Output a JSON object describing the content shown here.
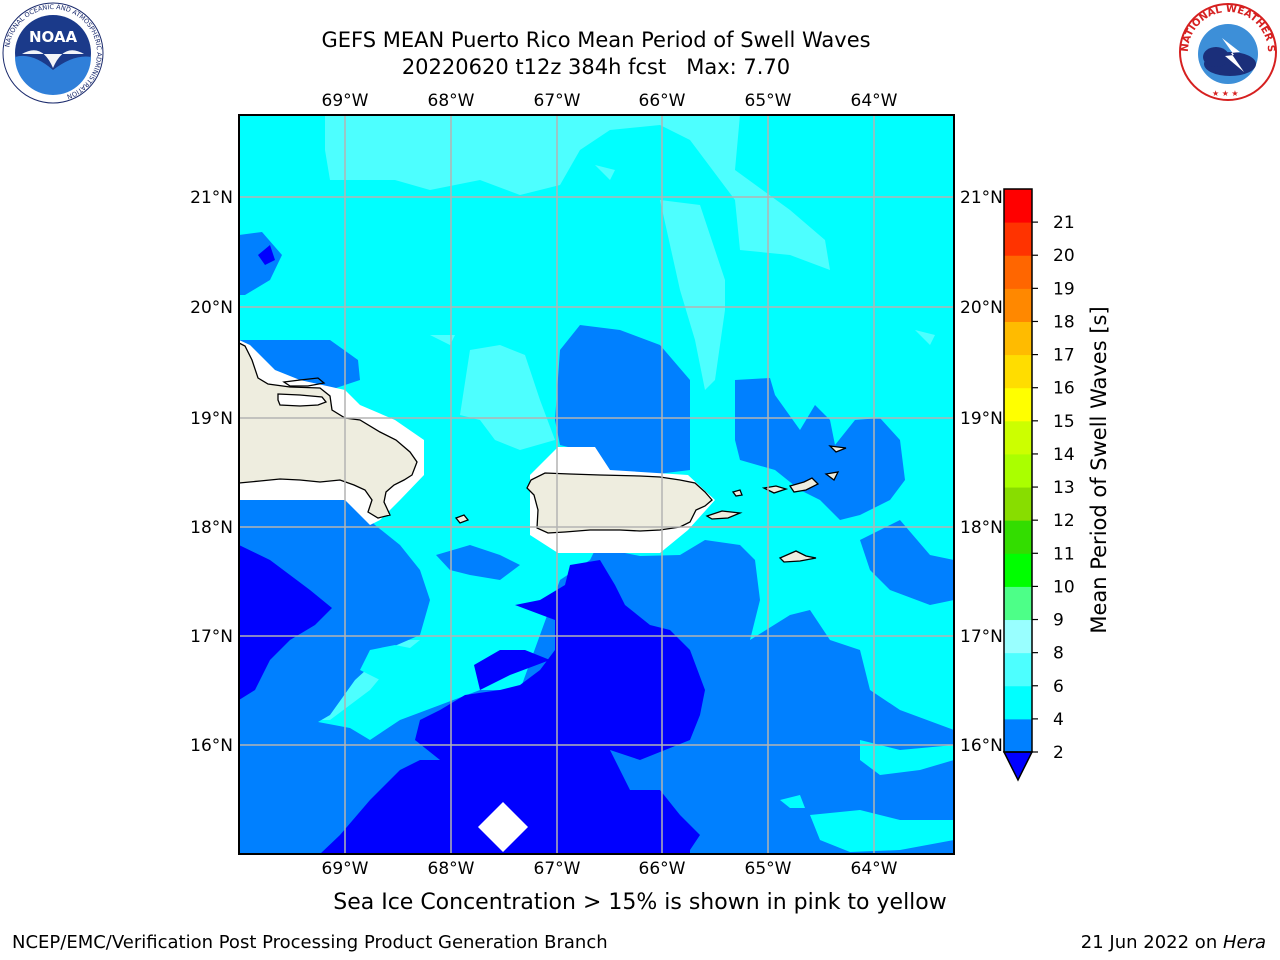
{
  "title": {
    "line1": "GEFS MEAN Puerto Rico Mean Period of Swell Waves",
    "line2": "20220620 t12z 384h fcst   Max: 7.70"
  },
  "map": {
    "lon_labels": [
      "69°W",
      "68°W",
      "67°W",
      "66°W",
      "65°W",
      "64°W"
    ],
    "lat_labels": [
      "21°N",
      "20°N",
      "19°N",
      "18°N",
      "17°N",
      "16°N"
    ],
    "land_color": "#eeeddf",
    "gridline_color": "#b4b4b4",
    "fill_levels": {
      "2-4": "#0000ff",
      "4-6": "#0080ff",
      "6-8": "#00ffff",
      "8-10": "#4dffff"
    }
  },
  "colorbar": {
    "label": "Mean Period of Swell Waves [s]",
    "ticks": [
      "2",
      "4",
      "6",
      "8",
      "9",
      "10",
      "11",
      "12",
      "13",
      "14",
      "15",
      "16",
      "17",
      "18",
      "19",
      "20",
      "21"
    ],
    "colors": [
      "#0080ff",
      "#00ffff",
      "#4dffff",
      "#99ffff",
      "#4dff88",
      "#00ff00",
      "#33dd00",
      "#88dd00",
      "#aaff00",
      "#ccff00",
      "#ffff00",
      "#ffdd00",
      "#ffbb00",
      "#ff8800",
      "#ff6600",
      "#ff3300",
      "#ff0000"
    ],
    "under_color": "#0000ff"
  },
  "footer": {
    "note": "Sea Ice Concentration > 15% is shown in pink to yellow",
    "left": "NCEP/EMC/Verification Post Processing Product Generation Branch",
    "right_date": "21 Jun 2022 on ",
    "right_machine": "Hera"
  },
  "logos": {
    "noaa": "NOAA",
    "nws": "NATIONAL WEATHER SERVICE",
    "noaa_ring": "NATIONAL OCEANIC AND ATMOSPHERIC ADMINISTRATION",
    "noaa_ring_bottom": "U.S. DEPARTMENT OF COMMERCE"
  }
}
